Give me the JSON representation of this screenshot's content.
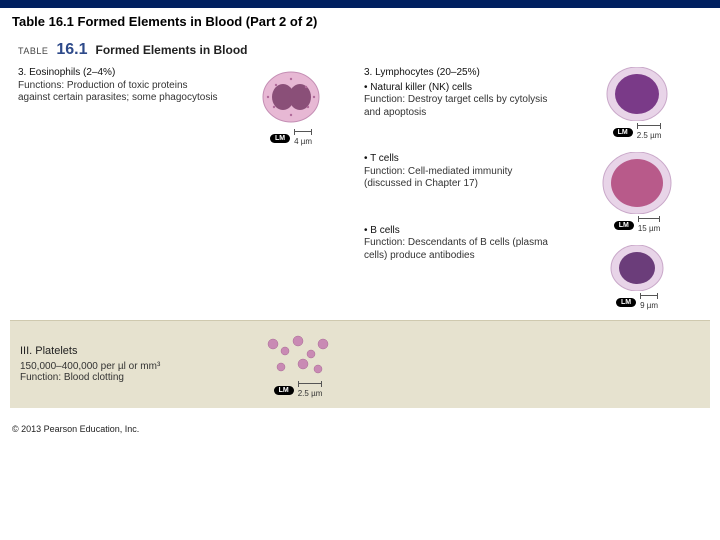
{
  "slide": {
    "title": "Table 16.1 Formed Elements in Blood (Part 2 of 2)"
  },
  "tableHeader": {
    "label": "TABLE",
    "number": "16.1",
    "title": "Formed Elements in Blood"
  },
  "left": {
    "eosinophils": {
      "num": "3.",
      "name": "Eosinophils (2–4%)",
      "func": "Functions: Production of toxic proteins against certain parasites; some phagocytosis",
      "scale": "4 µm"
    }
  },
  "rightHead": {
    "num": "3.",
    "name": "Lymphocytes (20–25%)"
  },
  "right": [
    {
      "bullet": "• Natural killer (NK) cells",
      "func": "Function: Destroy target cells by cytolysis and apoptosis",
      "scale": "2.5 µm",
      "cellColor": "#7a3a88",
      "cellSize": 48
    },
    {
      "bullet": "• T cells",
      "func": "Function: Cell-mediated immunity (discussed in Chapter 17)",
      "scale": "15 µm",
      "cellColor": "#b85a8a",
      "cellSize": 56
    },
    {
      "bullet": "• B cells",
      "func": "Function: Descendants of B cells (plasma cells) produce antibodies",
      "scale": "9 µm",
      "cellColor": "#6b3d7a",
      "cellSize": 40
    }
  ],
  "platelets": {
    "heading": "III. Platelets",
    "count": "150,000–400,000 per µl or mm³",
    "func": "Function: Blood clotting",
    "scale": "2.5 µm"
  },
  "lmLabel": "LM",
  "copyright": "© 2013 Pearson Education, Inc."
}
